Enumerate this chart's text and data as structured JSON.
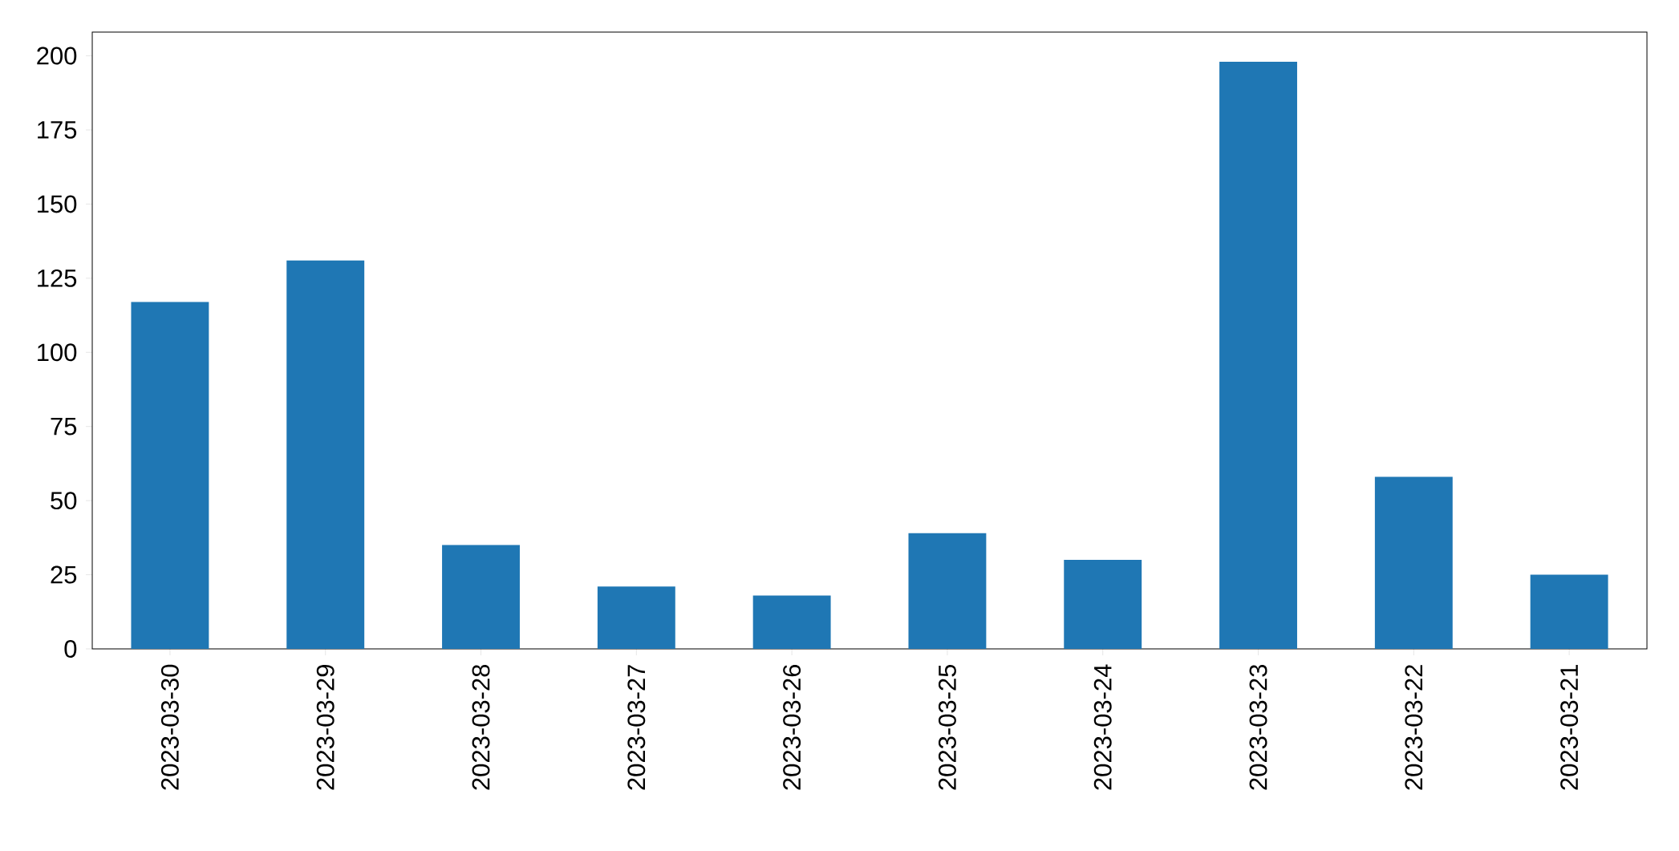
{
  "chart_data": {
    "type": "bar",
    "categories": [
      "2023-03-30",
      "2023-03-29",
      "2023-03-28",
      "2023-03-27",
      "2023-03-26",
      "2023-03-25",
      "2023-03-24",
      "2023-03-23",
      "2023-03-22",
      "2023-03-21"
    ],
    "values": [
      117,
      131,
      35,
      21,
      18,
      39,
      30,
      198,
      58,
      25
    ],
    "color": "#1f77b4",
    "ylim": [
      0,
      208
    ],
    "yticks": [
      0,
      25,
      50,
      75,
      100,
      125,
      150,
      175,
      200
    ]
  }
}
